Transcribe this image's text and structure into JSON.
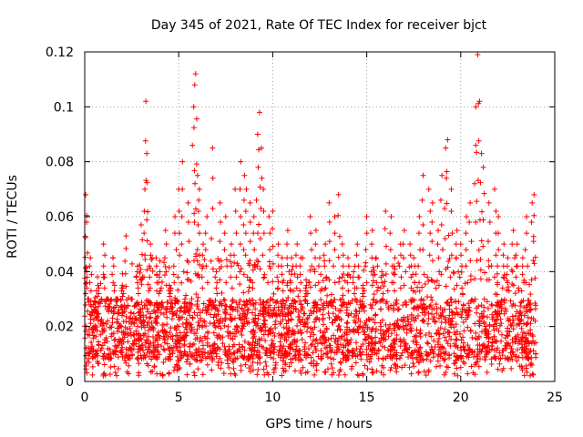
{
  "chart_data": {
    "type": "scatter",
    "title": "Day 345 of 2021, Rate Of TEC Index for receiver bjct",
    "xlabel": "GPS time / hours",
    "ylabel": "ROTI / TECUs",
    "xlim": [
      0,
      25
    ],
    "ylim": [
      0,
      0.12
    ],
    "xticks": [
      0,
      5,
      10,
      15,
      20,
      25
    ],
    "xtick_labels": [
      "0",
      "5",
      "10",
      "15",
      "20",
      "25"
    ],
    "yticks": [
      0,
      0.02,
      0.04,
      0.06,
      0.08,
      0.1,
      0.12
    ],
    "ytick_labels": [
      "0",
      "0.02",
      "0.04",
      "0.06",
      "0.08",
      "0.1",
      "0.12"
    ],
    "grid": true,
    "marker": "+",
    "color": "#ff0000",
    "series": [
      {
        "x": [
          0.05,
          0.1,
          0.1,
          0.2,
          0.3,
          0.5,
          0.7,
          1.0,
          1.2,
          1.5,
          1.7,
          2.0,
          2.2,
          2.5,
          2.8,
          3.0,
          3.2,
          3.25,
          3.3,
          3.5,
          3.8,
          4.0,
          4.3,
          4.5,
          4.8,
          5.0,
          5.2,
          5.5,
          5.8,
          5.85,
          5.9,
          6.0,
          6.1,
          6.3,
          6.5,
          6.8,
          7.0,
          7.2,
          7.5,
          7.8,
          8.0,
          8.3,
          8.5,
          8.6,
          8.8,
          9.0,
          9.2,
          9.3,
          9.4,
          9.5,
          9.8,
          10.0,
          10.3,
          10.5,
          10.8,
          11.0,
          11.3,
          11.5,
          11.8,
          12.0,
          12.3,
          12.5,
          12.8,
          13.0,
          13.3,
          13.5,
          13.7,
          14.0,
          14.3,
          14.5,
          14.8,
          15.0,
          15.3,
          15.5,
          15.8,
          16.0,
          16.3,
          16.5,
          16.8,
          17.0,
          17.3,
          17.5,
          17.8,
          18.0,
          18.3,
          18.5,
          18.8,
          19.0,
          19.2,
          19.3,
          19.5,
          19.8,
          20.0,
          20.3,
          20.5,
          20.8,
          20.9,
          21.0,
          21.1,
          21.2,
          21.5,
          21.8,
          22.0,
          22.3,
          22.5,
          22.8,
          23.0,
          23.3,
          23.5,
          23.8,
          23.9
        ],
        "y": [
          0.068,
          0.058,
          0.04,
          0.03,
          0.045,
          0.025,
          0.035,
          0.05,
          0.03,
          0.045,
          0.03,
          0.035,
          0.053,
          0.03,
          0.04,
          0.057,
          0.07,
          0.102,
          0.083,
          0.05,
          0.045,
          0.04,
          0.055,
          0.035,
          0.06,
          0.07,
          0.08,
          0.065,
          0.1,
          0.108,
          0.112,
          0.075,
          0.07,
          0.05,
          0.06,
          0.085,
          0.04,
          0.065,
          0.06,
          0.05,
          0.07,
          0.08,
          0.075,
          0.07,
          0.065,
          0.06,
          0.09,
          0.098,
          0.085,
          0.07,
          0.06,
          0.062,
          0.05,
          0.045,
          0.055,
          0.045,
          0.05,
          0.045,
          0.035,
          0.06,
          0.055,
          0.045,
          0.05,
          0.065,
          0.06,
          0.068,
          0.05,
          0.045,
          0.04,
          0.05,
          0.035,
          0.06,
          0.055,
          0.045,
          0.04,
          0.062,
          0.06,
          0.045,
          0.05,
          0.055,
          0.05,
          0.045,
          0.06,
          0.075,
          0.07,
          0.065,
          0.055,
          0.075,
          0.085,
          0.088,
          0.07,
          0.055,
          0.05,
          0.06,
          0.065,
          0.1,
          0.119,
          0.102,
          0.083,
          0.078,
          0.065,
          0.07,
          0.06,
          0.05,
          0.045,
          0.055,
          0.05,
          0.045,
          0.06,
          0.065,
          0.068
        ]
      }
    ],
    "dense_band": {
      "x_range": [
        0,
        24
      ],
      "y_floor": [
        0.002,
        0.012
      ],
      "y_typical": [
        0.008,
        0.03
      ],
      "note_values": "bulk of points lie between about 0.005 and 0.03 TECUs"
    }
  }
}
